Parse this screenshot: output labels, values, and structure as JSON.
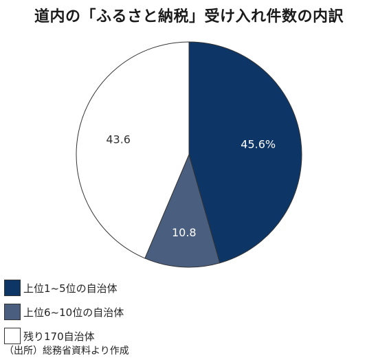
{
  "chart_data": {
    "type": "pie",
    "title": "道内の「ふるさと納税」受け入れ件数の内訳",
    "categories": [
      "上位1~5位の自治体",
      "上位6~10位の自治体",
      "残り170自治体"
    ],
    "values": [
      45.6,
      10.8,
      43.6
    ],
    "data_labels": [
      "45.6%",
      "10.8",
      "43.6"
    ],
    "colors": [
      "#0d3566",
      "#4a5f80",
      "#ffffff"
    ],
    "label_colors": [
      "#ffffff",
      "#ffffff",
      "#333333"
    ],
    "start_angle_deg": 0,
    "direction": "clockwise",
    "legend_position": "bottom-left"
  },
  "source": "（出所）総務省資料より作成"
}
